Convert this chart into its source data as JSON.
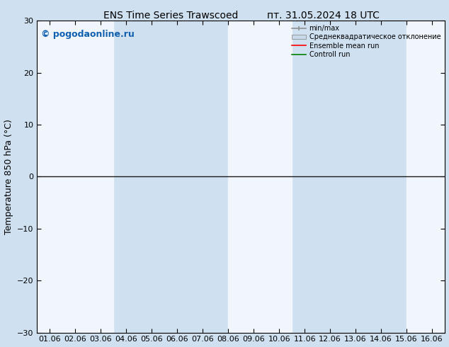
{
  "title_left": "ENS Time Series Trawscoed",
  "title_right": "пт. 31.05.2024 18 UTC",
  "ylabel": "Temperature 850 hPa (°С)",
  "watermark": "© pogodaonline.ru",
  "ylim": [
    -30,
    30
  ],
  "yticks": [
    -30,
    -20,
    -10,
    0,
    10,
    20,
    30
  ],
  "x_labels": [
    "01.06",
    "02.06",
    "03.06",
    "04.06",
    "05.06",
    "06.06",
    "07.06",
    "08.06",
    "09.06",
    "10.06",
    "11.06",
    "12.06",
    "13.06",
    "14.06",
    "15.06",
    "16.06"
  ],
  "n_points": 16,
  "bg_color": "#cfe0f0",
  "band_color": "#ddeeff",
  "white_band_color": "#f0f6fc",
  "legend_items": [
    {
      "label": "min/max",
      "color": "#909090",
      "type": "errorbar"
    },
    {
      "label": "Среднеквадратическое отклонение",
      "color": "#c0d4e8",
      "type": "fill"
    },
    {
      "label": "Ensemble mean run",
      "color": "#ff0000",
      "type": "line"
    },
    {
      "label": "Controll run",
      "color": "#008000",
      "type": "line"
    }
  ],
  "zero_line_color": "#1a1a1a",
  "title_fontsize": 10,
  "label_fontsize": 9,
  "tick_fontsize": 8,
  "watermark_color": "#1060b0"
}
